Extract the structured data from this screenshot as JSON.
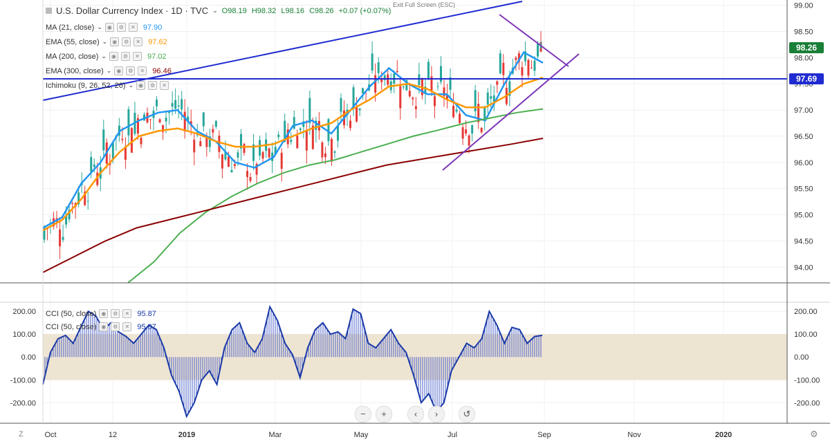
{
  "header": {
    "title": "U.S. Dollar Currency Index · 1D · TVC",
    "ohlc": {
      "o": "O98.19",
      "h": "H98.32",
      "l": "L98.16",
      "c": "C98.26",
      "chg": "+0.07 (+0.07%)"
    },
    "exit_fullscreen": "Exit Full Screen (ESC)"
  },
  "indicators": [
    {
      "label": "MA (21, close)",
      "value": "97.90",
      "color": "#2196f3"
    },
    {
      "label": "EMA (55, close)",
      "value": "97.62",
      "color": "#ff9800"
    },
    {
      "label": "MA (200, close)",
      "value": "97.02",
      "color": "#4caf50"
    },
    {
      "label": "EMA (300, close)",
      "value": "96.46",
      "color": "#8b0000"
    },
    {
      "label": "Ichimoku (9, 26, 52, 26)",
      "value": "",
      "color": "#888888"
    }
  ],
  "cci_legend": [
    {
      "label": "CCI (50, close)",
      "value": "95.87"
    },
    {
      "label": "CCI (50, close)",
      "value": "95.87"
    }
  ],
  "price_tags": {
    "last": "98.26",
    "level": "97.69"
  },
  "corner": {
    "left": "Z",
    "right": "⚙"
  },
  "nav_buttons": [
    "−",
    "+",
    "‹",
    "›",
    "↺"
  ],
  "chart_data": [
    {
      "type": "candlestick",
      "title": "U.S. Dollar Currency Index",
      "ylim": [
        93.7,
        99.1
      ],
      "y_ticks": [
        "99.00",
        "98.50",
        "98.00",
        "97.50",
        "97.00",
        "96.50",
        "96.00",
        "95.50",
        "95.00",
        "94.50",
        "94.00"
      ],
      "x_ticks": [
        "Oct",
        "12",
        "2019",
        "Mar",
        "May",
        "Jul",
        "Sep",
        "Nov",
        "2020"
      ],
      "series": [
        {
          "name": "MA (21, close)",
          "values": [
            94.75,
            94.95,
            95.6,
            96.0,
            96.6,
            96.8,
            96.95,
            97.0,
            96.6,
            96.4,
            96.0,
            95.9,
            96.1,
            96.7,
            96.8,
            96.55,
            97.0,
            97.45,
            97.8,
            97.5,
            97.3,
            97.3,
            96.9,
            96.8,
            97.5,
            98.1,
            97.9
          ]
        },
        {
          "name": "EMA (55, close)",
          "values": [
            94.7,
            94.9,
            95.3,
            95.8,
            96.2,
            96.5,
            96.6,
            96.65,
            96.55,
            96.4,
            96.3,
            96.3,
            96.35,
            96.5,
            96.65,
            96.75,
            97.0,
            97.2,
            97.45,
            97.5,
            97.4,
            97.2,
            97.05,
            97.05,
            97.25,
            97.5,
            97.62
          ]
        },
        {
          "name": "MA (200, close)",
          "values": [
            93.6,
            94.1,
            94.65,
            95.05,
            95.35,
            95.6,
            95.8,
            95.95,
            96.05,
            96.2,
            96.35,
            96.5,
            96.62,
            96.75,
            96.85,
            96.95,
            97.02
          ]
        },
        {
          "name": "EMA (300, close)",
          "values": [
            93.9,
            94.2,
            94.5,
            94.75,
            94.9,
            95.05,
            95.2,
            95.35,
            95.5,
            95.65,
            95.8,
            95.95,
            96.05,
            96.15,
            96.25,
            96.35,
            96.46
          ]
        }
      ],
      "last_price": 98.26,
      "horizontal_level": 97.69
    },
    {
      "type": "line",
      "title": "CCI (50, close)",
      "ylim": [
        -290,
        240
      ],
      "y_ticks": [
        "200.00",
        "100.00",
        "0.00",
        "-100.00",
        "-200.00"
      ],
      "band": [
        -100,
        100
      ],
      "series": [
        {
          "name": "CCI (50, close)",
          "values": [
            -120,
            20,
            80,
            95,
            60,
            130,
            200,
            180,
            120,
            150,
            110,
            90,
            60,
            100,
            140,
            120,
            40,
            -80,
            -150,
            -260,
            -200,
            -100,
            -60,
            -120,
            40,
            120,
            150,
            60,
            20,
            80,
            220,
            160,
            60,
            10,
            -90,
            40,
            120,
            150,
            100,
            110,
            80,
            210,
            190,
            60,
            40,
            80,
            120,
            60,
            20,
            -80,
            -200,
            -160,
            -240,
            -200,
            -60,
            0,
            60,
            40,
            80,
            200,
            140,
            60,
            130,
            120,
            60,
            90,
            95
          ]
        }
      ]
    }
  ]
}
